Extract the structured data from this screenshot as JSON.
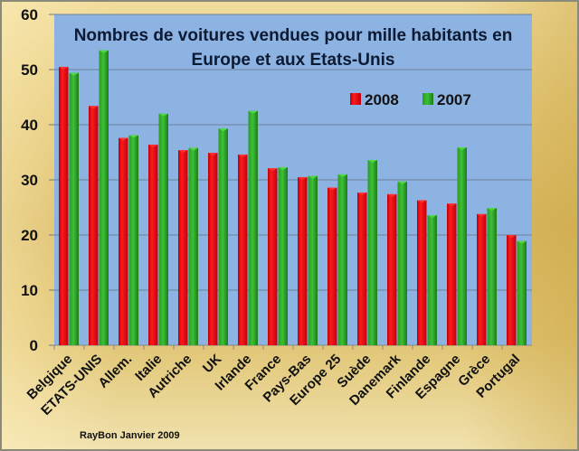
{
  "chart_data": {
    "type": "bar",
    "title": "Nombres de voitures vendues pour mille habitants en Europe et aux Etats-Unis",
    "title_lines": [
      "Nombres de voitures vendues pour mille habitants en",
      "Europe et aux Etats-Unis"
    ],
    "xlabel": "",
    "ylabel": "",
    "ylim": [
      0,
      60
    ],
    "yticks": [
      0,
      10,
      20,
      30,
      40,
      50,
      60
    ],
    "grid": true,
    "legend_position": "top-right",
    "categories": [
      "Belgique",
      "ETATS-UNIS",
      "Allem.",
      "Italie",
      "Autriche",
      "UK",
      "Irlande",
      "France",
      "Pays-Bas",
      "Europe 25",
      "Suède",
      "Danemark",
      "Finlande",
      "Espagne",
      "Grèce",
      "Portugal"
    ],
    "series": [
      {
        "name": "2008",
        "color": "#e0000c",
        "values": [
          50.5,
          43.4,
          37.6,
          36.4,
          35.4,
          34.9,
          34.6,
          32.1,
          30.5,
          28.6,
          27.7,
          27.4,
          26.3,
          25.7,
          23.8,
          20.0
        ]
      },
      {
        "name": "2007",
        "color": "#2ea82a",
        "values": [
          49.4,
          53.5,
          38.1,
          42.0,
          35.8,
          39.3,
          42.5,
          32.3,
          30.7,
          31.0,
          33.6,
          29.7,
          23.6,
          35.9,
          24.9,
          18.9
        ]
      }
    ],
    "annotation": "RayBon Janvier 2009"
  },
  "colors": {
    "plot_bg": "#8db3e2",
    "gridline": "#6a7f9a"
  }
}
